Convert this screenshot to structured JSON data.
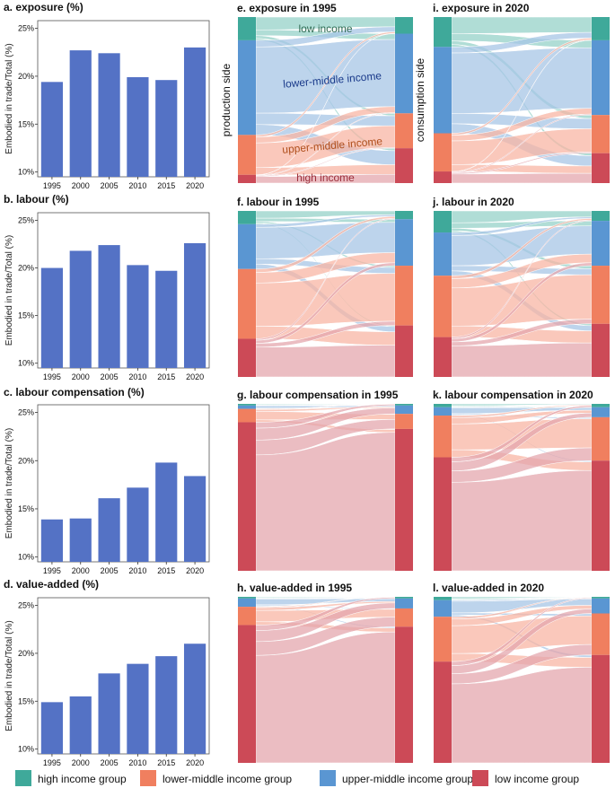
{
  "colors": {
    "high": "#3fa99a",
    "lowermid": "#f07f5f",
    "uppermid": "#5a96d2",
    "low": "#cc4a57",
    "bar": "#5472c5",
    "flow_high": "#95d2c8",
    "flow_lowermid": "#f8b6a4",
    "flow_uppermid": "#a7c5e5",
    "flow_low": "#e4a7ad"
  },
  "axis_common": {
    "ylabel": "Embodied in trade/Total (%)",
    "yticks": [
      "10%",
      "15%",
      "20%",
      "25%"
    ]
  },
  "chart_data": [
    {
      "type": "bar",
      "title": "a. exposure (%)",
      "categories": [
        "1995",
        "2000",
        "2005",
        "2010",
        "2015",
        "2020"
      ],
      "values": [
        19.4,
        22.7,
        22.4,
        19.9,
        19.6,
        23.0
      ],
      "ylabel": "Embodied in trade/Total (%)",
      "ylim": [
        9.5,
        25.8
      ]
    },
    {
      "type": "bar",
      "title": "b. labour (%)",
      "categories": [
        "1995",
        "2000",
        "2005",
        "2010",
        "2015",
        "2020"
      ],
      "values": [
        20.0,
        21.8,
        22.4,
        20.3,
        19.7,
        22.6
      ],
      "ylabel": "Embodied in trade/Total (%)",
      "ylim": [
        9.5,
        25.8
      ]
    },
    {
      "type": "bar",
      "title": "c. labour compensation (%)",
      "categories": [
        "1995",
        "2000",
        "2005",
        "2010",
        "2015",
        "2020"
      ],
      "values": [
        13.9,
        14.0,
        16.1,
        17.2,
        19.8,
        18.4
      ],
      "ylabel": "Embodied in trade/Total (%)",
      "ylim": [
        9.5,
        25.8
      ]
    },
    {
      "type": "bar",
      "title": "d. value-added (%)",
      "categories": [
        "1995",
        "2000",
        "2005",
        "2010",
        "2015",
        "2020"
      ],
      "values": [
        14.9,
        15.5,
        17.9,
        18.9,
        19.7,
        21.0
      ],
      "ylabel": "Embodied in trade/Total (%)",
      "ylim": [
        9.5,
        25.8
      ]
    },
    {
      "type": "sankey",
      "title": "e. exposure in 1995",
      "source_label": "production side",
      "labels": {
        "low income": "low income",
        "lower-middle income": "lower-middle income",
        "upper-middle income": "upper-middle income",
        "high income": "high income"
      },
      "left": {
        "high": 14,
        "uppermid": 57,
        "lowermid": 24,
        "low": 5
      },
      "right": {
        "high": 10,
        "uppermid": 48,
        "lowermid": 21,
        "low": 21
      }
    },
    {
      "type": "sankey",
      "title": "i. exposure in 2020",
      "target_label": "consumption side",
      "left": {
        "high": 18,
        "uppermid": 52,
        "lowermid": 23,
        "low": 7
      },
      "right": {
        "high": 14,
        "uppermid": 45,
        "lowermid": 23,
        "low": 18
      }
    },
    {
      "type": "sankey",
      "title": "f. labour in 1995",
      "left": {
        "high": 8,
        "uppermid": 27,
        "lowermid": 42,
        "low": 23
      },
      "right": {
        "high": 5,
        "uppermid": 28,
        "lowermid": 36,
        "low": 31
      }
    },
    {
      "type": "sankey",
      "title": "j. labour in 2020",
      "left": {
        "high": 13,
        "uppermid": 26,
        "lowermid": 37,
        "low": 24
      },
      "right": {
        "high": 6,
        "uppermid": 27,
        "lowermid": 35,
        "low": 32
      }
    },
    {
      "type": "sankey",
      "title": "g. labour compensation in 1995",
      "left": {
        "high": 1,
        "uppermid": 2,
        "lowermid": 8,
        "low": 89
      },
      "right": {
        "high": 1,
        "uppermid": 5,
        "lowermid": 9,
        "low": 85
      }
    },
    {
      "type": "sankey",
      "title": "k. labour compensation in 2020",
      "left": {
        "high": 2,
        "uppermid": 5,
        "lowermid": 25,
        "low": 68
      },
      "right": {
        "high": 2,
        "uppermid": 6,
        "lowermid": 26,
        "low": 66
      }
    },
    {
      "type": "sankey",
      "title": "h. value-added in 1995",
      "left": {
        "high": 1,
        "uppermid": 5,
        "lowermid": 11,
        "low": 83
      },
      "right": {
        "high": 1,
        "uppermid": 6,
        "lowermid": 11,
        "low": 82
      }
    },
    {
      "type": "sankey",
      "title": "l. value-added in 2020",
      "left": {
        "high": 2,
        "uppermid": 10,
        "lowermid": 27,
        "low": 61
      },
      "right": {
        "high": 1,
        "uppermid": 9,
        "lowermid": 25,
        "low": 65
      }
    }
  ],
  "legend": [
    {
      "key": "high",
      "label": "high income group"
    },
    {
      "key": "lowermid",
      "label": "lower-middle income group"
    },
    {
      "key": "uppermid",
      "label": "upper-middle income group"
    },
    {
      "key": "low",
      "label": "low income group"
    }
  ]
}
